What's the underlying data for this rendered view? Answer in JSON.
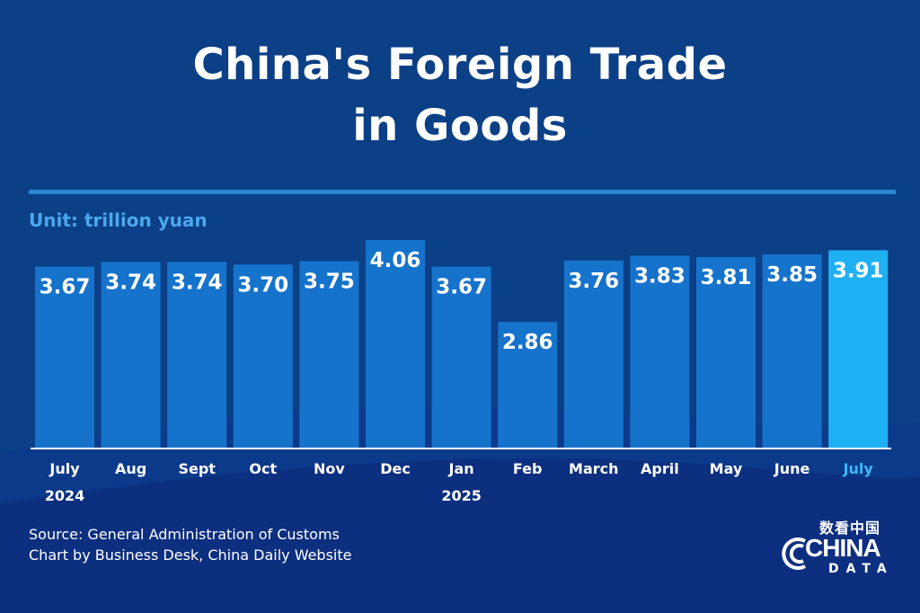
{
  "title_line1": "China's Foreign Trade",
  "title_line2": "in Goods",
  "unit_label": "Unit: trillion yuan",
  "source_line1": "Source: General Administration of Customs",
  "source_line2": "Chart by Business Desk, China Daily Website",
  "logo": {
    "cn": "数看中国",
    "main": "CHINA",
    "sub": "DATA"
  },
  "colors": {
    "background": "#0b3f86",
    "bar": "#1673cc",
    "bar_highlight": "#1fb0f3",
    "label": "#ffffff",
    "label_highlight": "#3db8f5"
  },
  "chart_data": {
    "type": "bar",
    "title": "China's Foreign Trade in Goods",
    "ylabel": "Unit: trillion yuan",
    "categories": [
      [
        "July",
        "2024"
      ],
      [
        "Aug",
        ""
      ],
      [
        "Sept",
        ""
      ],
      [
        "Oct",
        ""
      ],
      [
        "Nov",
        ""
      ],
      [
        "Dec",
        ""
      ],
      [
        "Jan",
        "2025"
      ],
      [
        "Feb",
        ""
      ],
      [
        "March",
        ""
      ],
      [
        "April",
        ""
      ],
      [
        "May",
        ""
      ],
      [
        "June",
        ""
      ],
      [
        "July",
        ""
      ]
    ],
    "values": [
      3.67,
      3.74,
      3.74,
      3.7,
      3.75,
      4.06,
      3.67,
      2.86,
      3.76,
      3.83,
      3.81,
      3.85,
      3.91
    ],
    "value_labels": [
      "3.67",
      "3.74",
      "3.74",
      "3.70",
      "3.75",
      "4.06",
      "3.67",
      "2.86",
      "3.76",
      "3.83",
      "3.81",
      "3.85",
      "3.91"
    ],
    "highlight_index": 12,
    "ylim": [
      0,
      4.1
    ],
    "grid": false,
    "legend": "none"
  }
}
